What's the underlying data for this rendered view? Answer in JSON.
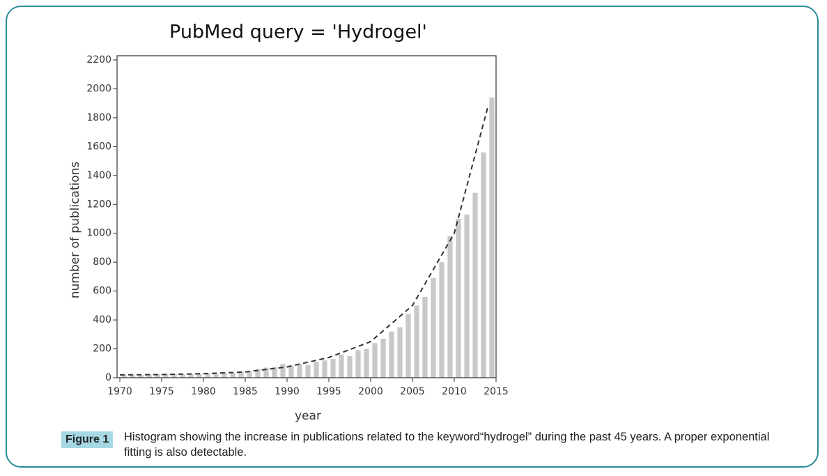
{
  "chart_data": {
    "type": "histogram",
    "title": "PubMed query = 'Hydrogel'",
    "x_label": "year",
    "y_label": "number of publications",
    "bins": [
      1970,
      1971,
      1972,
      1973,
      1974,
      1975,
      1976,
      1977,
      1978,
      1979,
      1980,
      1981,
      1982,
      1983,
      1984,
      1985,
      1986,
      1987,
      1988,
      1989,
      1990,
      1991,
      1992,
      1993,
      1994,
      1995,
      1996,
      1997,
      1998,
      1999,
      2000,
      2001,
      2002,
      2003,
      2004,
      2005,
      2006,
      2007,
      2008,
      2009,
      2010,
      2011,
      2012,
      2013,
      2014,
      2015
    ],
    "values": [
      20,
      20,
      20,
      25,
      25,
      25,
      25,
      25,
      25,
      30,
      30,
      30,
      35,
      35,
      45,
      45,
      60,
      70,
      75,
      95,
      85,
      95,
      90,
      110,
      120,
      130,
      160,
      150,
      190,
      200,
      240,
      270,
      320,
      350,
      440,
      500,
      560,
      690,
      800,
      980,
      1100,
      1130,
      1280,
      1560,
      1940
    ],
    "color": "#c8c8c8",
    "fit": {
      "x": [
        1970,
        1975,
        1980,
        1985,
        1990,
        1995,
        2000,
        2005,
        2010,
        2014
      ],
      "values": [
        20,
        22,
        28,
        40,
        75,
        140,
        250,
        500,
        1000,
        1870
      ],
      "color": "#333333"
    },
    "xlim": [
      1970,
      2015
    ],
    "xticks": [
      1970,
      1975,
      1980,
      1985,
      1990,
      1995,
      2000,
      2005,
      2010,
      2015
    ],
    "ylim": [
      0,
      2200
    ],
    "yticks": [
      0,
      200,
      400,
      600,
      800,
      1000,
      1200,
      1400,
      1600,
      1800,
      2000,
      2200
    ]
  },
  "caption": {
    "label": "Figure 1",
    "text": "Histogram showing the increase in publications related to the keyword“hydrogel” during the past 45 years. A proper exponential fitting is also detectable."
  }
}
